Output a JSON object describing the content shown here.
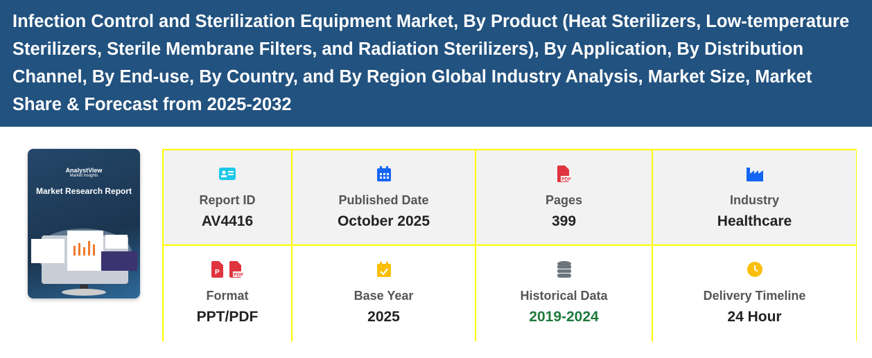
{
  "header": {
    "title": "Infection Control and Sterilization Equipment Market, By Product (Heat Sterilizers, Low-temperature Sterilizers, Sterile Membrane Filters, and Radiation Sterilizers), By Application, By Distribution Channel, By End-use, By Country, and By Region Global Industry Analysis, Market Size, Market Share & Forecast from 2025-2032"
  },
  "cover": {
    "brand": "AnalystView",
    "tagline": "Market Insights",
    "title": "Market Research Report"
  },
  "details": [
    {
      "icon": "id-card-icon",
      "color": "#1ec8e8",
      "label": "Report ID",
      "value": "AV4416"
    },
    {
      "icon": "calendar-icon",
      "color": "#1565f5",
      "label": "Published Date",
      "value": "October 2025"
    },
    {
      "icon": "pdf-file-icon",
      "color": "#e0343f",
      "label": "Pages",
      "value": "399"
    },
    {
      "icon": "industry-icon",
      "color": "#1565f5",
      "label": "Industry",
      "value": "Healthcare"
    },
    {
      "icon": "ppt-pdf-icon",
      "color": "#e0343f",
      "label": "Format",
      "value": "PPT/PDF"
    },
    {
      "icon": "calendar-check-icon",
      "color": "#fbbf0a",
      "label": "Base Year",
      "value": "2025"
    },
    {
      "icon": "database-icon",
      "color": "#6c757d",
      "label": "Historical Data",
      "value": "2019-2024",
      "value_color": "#1e7a3c"
    },
    {
      "icon": "clock-icon",
      "color": "#fbbf0a",
      "label": "Delivery Timeline",
      "value": "24 Hour"
    }
  ]
}
